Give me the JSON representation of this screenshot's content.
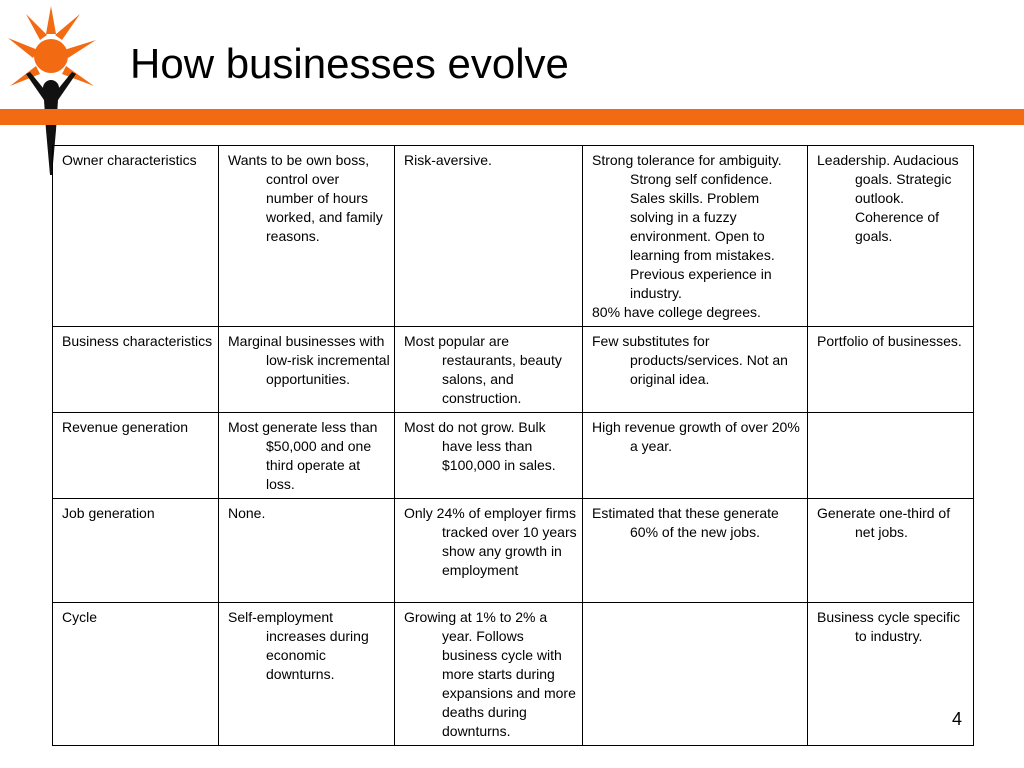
{
  "slide": {
    "title": "How businesses evolve",
    "page_number": "4",
    "colors": {
      "accent": "#f26b12",
      "figure": "#111111"
    },
    "logo_icon": "sun-person-icon"
  },
  "table": {
    "rows": [
      {
        "cells": [
          {
            "text": "Owner characteristics"
          },
          {
            "text": "Wants to be own boss, control over number of hours worked, and family reasons."
          },
          {
            "text": "Risk-aversive."
          },
          {
            "text": "Strong tolerance for ambiguity. Strong self confidence. Sales skills. Problem solving in a fuzzy environment. Open to learning from mistakes. Previous experience in industry.",
            "extra": "80% have college degrees."
          },
          {
            "text": "Leadership. Audacious goals. Strategic outlook. Coherence of goals."
          }
        ]
      },
      {
        "cells": [
          {
            "text": "Business characteristics"
          },
          {
            "text": "Marginal businesses with low-risk incremental opportunities."
          },
          {
            "text": "Most popular are restaurants, beauty salons, and construction."
          },
          {
            "text": "Few substitutes for products/services. Not an original idea."
          },
          {
            "text": "Portfolio of businesses."
          }
        ]
      },
      {
        "cells": [
          {
            "text": "Revenue generation"
          },
          {
            "text": "Most generate less than $50,000 and one third operate at loss."
          },
          {
            "text": "Most do not grow. Bulk have less than $100,000 in sales."
          },
          {
            "text": "High revenue growth of over 20% a year."
          },
          {
            "text": ""
          }
        ]
      },
      {
        "cells": [
          {
            "text": "Job generation"
          },
          {
            "text": "None."
          },
          {
            "text": "Only 24% of employer firms tracked over 10 years show any growth in employment"
          },
          {
            "text": "Estimated that these generate 60% of the new jobs."
          },
          {
            "text": "Generate one-third of net jobs."
          }
        ]
      },
      {
        "cells": [
          {
            "text": "Cycle"
          },
          {
            "text": "Self-employment increases during economic downturns."
          },
          {
            "text": "Growing at 1% to 2% a year. Follows business cycle with more starts during expansions and more deaths during downturns."
          },
          {
            "text": ""
          },
          {
            "text": "Business cycle specific to industry."
          }
        ]
      }
    ]
  }
}
